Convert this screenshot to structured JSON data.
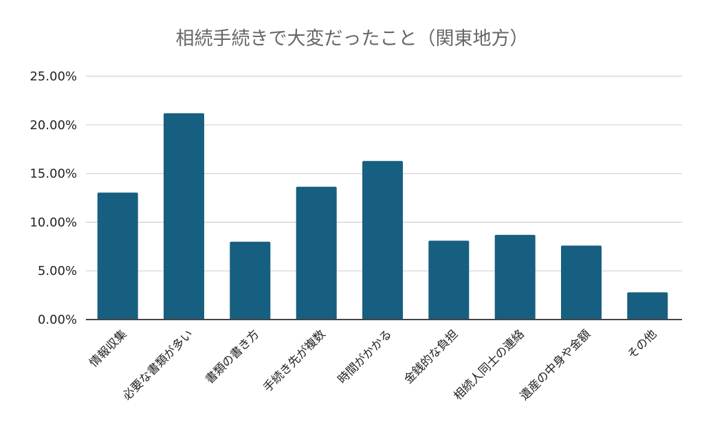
{
  "chart_data": {
    "type": "bar",
    "title": "相続手続きで大変だったこと（関東地方）",
    "xlabel": "",
    "ylabel": "",
    "categories": [
      "情報収集",
      "必要な書類が多い",
      "書類の書き方",
      "手続き先が複数",
      "時間がかかる",
      "金銭的な負担",
      "相続人同士の連絡",
      "遺産の中身や金額",
      "その他"
    ],
    "values": [
      0.1305,
      0.212,
      0.08,
      0.1365,
      0.163,
      0.081,
      0.087,
      0.076,
      0.028
    ],
    "ylim": [
      0,
      0.25
    ],
    "yticks": [
      0,
      0.05,
      0.1,
      0.15,
      0.2,
      0.25
    ],
    "ytick_labels": [
      "0.00%",
      "5.00%",
      "10.00%",
      "15.00%",
      "20.00%",
      "25.00%"
    ],
    "grid": true,
    "legend": "none",
    "colors": {
      "bar": "#175f80",
      "grid": "#d0d0d0",
      "axis": "#444444",
      "title": "#666666"
    }
  }
}
